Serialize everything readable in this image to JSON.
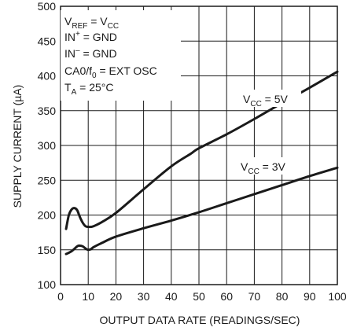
{
  "chart_data": {
    "type": "line",
    "xlabel": "OUTPUT DATA RATE (READINGS/SEC)",
    "ylabel": "SUPPLY CURRENT (µA)",
    "xlim": [
      0,
      100
    ],
    "ylim": [
      100,
      500
    ],
    "x_ticks": [
      "0",
      "10",
      "20",
      "30",
      "40",
      "50",
      "60",
      "70",
      "80",
      "90",
      "100"
    ],
    "y_ticks": [
      "100",
      "150",
      "200",
      "250",
      "300",
      "350",
      "400",
      "450",
      "500"
    ],
    "grid": true,
    "conditions": {
      "line1": {
        "main": "V",
        "sub": "REF",
        "rest": " = V",
        "sub2": "CC"
      },
      "line2": {
        "main": "IN",
        "sup": "+",
        "rest": " = GND"
      },
      "line3": {
        "main": "IN",
        "sup": "–",
        "rest": " = GND"
      },
      "line4": {
        "main": "CA0/f",
        "sub": "0",
        "rest": " = EXT OSC"
      },
      "line5": {
        "main": "T",
        "sub": "A",
        "rest": " = 25°C"
      }
    },
    "series": [
      {
        "name": "VCC = 5V",
        "label_main": "V",
        "label_sub": "CC",
        "label_rest": " = 5V",
        "x": [
          2,
          3,
          4,
          5,
          6,
          7,
          8,
          9,
          10,
          11,
          12,
          15,
          20,
          30,
          40,
          47,
          50,
          60,
          70,
          80,
          90,
          100
        ],
        "y": [
          180,
          200,
          208,
          210,
          207,
          197,
          189,
          184,
          183,
          183,
          184,
          190,
          203,
          237,
          270,
          288,
          296,
          316,
          338,
          361,
          383,
          406
        ]
      },
      {
        "name": "VCC = 3V",
        "label_main": "V",
        "label_sub": "CC",
        "label_rest": " = 3V",
        "x": [
          2,
          4,
          6,
          7,
          8,
          9,
          10,
          11,
          12,
          15,
          20,
          30,
          40,
          50,
          60,
          70,
          80,
          90,
          100
        ],
        "y": [
          144,
          148,
          155,
          156,
          155,
          152,
          150,
          151,
          154,
          160,
          169,
          181,
          192,
          204,
          217,
          230,
          243,
          256,
          268
        ]
      }
    ]
  }
}
